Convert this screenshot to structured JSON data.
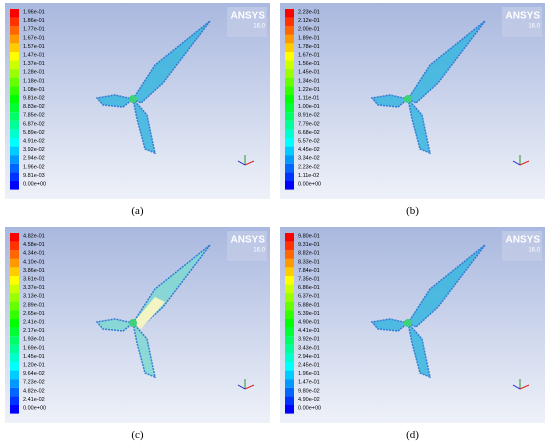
{
  "panels": [
    {
      "caption": "(a)",
      "logo": "ANSYS",
      "version": "16.0",
      "legend": [
        "1.96e-01",
        "1.86e-01",
        "1.77e-01",
        "1.67e-01",
        "1.57e-01",
        "1.47e-01",
        "1.37e-01",
        "1.28e-01",
        "1.18e-01",
        "1.08e-01",
        "9.81e-02",
        "8.83e-02",
        "7.85e-02",
        "6.87e-02",
        "5.89e-02",
        "4.91e-02",
        "3.92e-02",
        "2.94e-02",
        "1.96e-02",
        "9.81e-03",
        "0.00e+00"
      ]
    },
    {
      "caption": "(b)",
      "logo": "ANSYS",
      "version": "16.0",
      "legend": [
        "2.23e-01",
        "2.12e-01",
        "2.00e-01",
        "1.89e-01",
        "1.78e-01",
        "1.67e-01",
        "1.56e-01",
        "1.45e-01",
        "1.34e-01",
        "1.22e-01",
        "1.11e-01",
        "1.00e-01",
        "8.91e-02",
        "7.79e-02",
        "6.68e-02",
        "5.57e-02",
        "4.45e-02",
        "3.34e-02",
        "2.23e-02",
        "1.11e-02",
        "0.00e+00"
      ]
    },
    {
      "caption": "(c)",
      "logo": "ANSYS",
      "version": "16.0",
      "legend": [
        "4.82e-01",
        "4.58e-01",
        "4.34e-01",
        "4.10e-01",
        "3.86e-01",
        "3.61e-01",
        "3.37e-01",
        "3.13e-01",
        "2.89e-01",
        "2.65e-01",
        "2.41e-01",
        "2.17e-01",
        "1.93e-01",
        "1.69e-01",
        "1.45e-01",
        "1.20e-01",
        "9.64e-02",
        "7.23e-02",
        "4.82e-02",
        "2.41e-02",
        "0.00e+00"
      ]
    },
    {
      "caption": "(d)",
      "logo": "ANSYS",
      "version": "16.0",
      "legend": [
        "9.80e-01",
        "9.31e-01",
        "8.82e-01",
        "8.33e-01",
        "7.84e-01",
        "7.35e-01",
        "6.86e-01",
        "6.37e-01",
        "5.88e-01",
        "5.39e-01",
        "4.90e-01",
        "4.41e-01",
        "3.92e-01",
        "3.43e-01",
        "2.94e-01",
        "2.45e-01",
        "1.96e-01",
        "1.47e-01",
        "9.80e-02",
        "4.90e-02",
        "0.00e+00"
      ]
    }
  ]
}
